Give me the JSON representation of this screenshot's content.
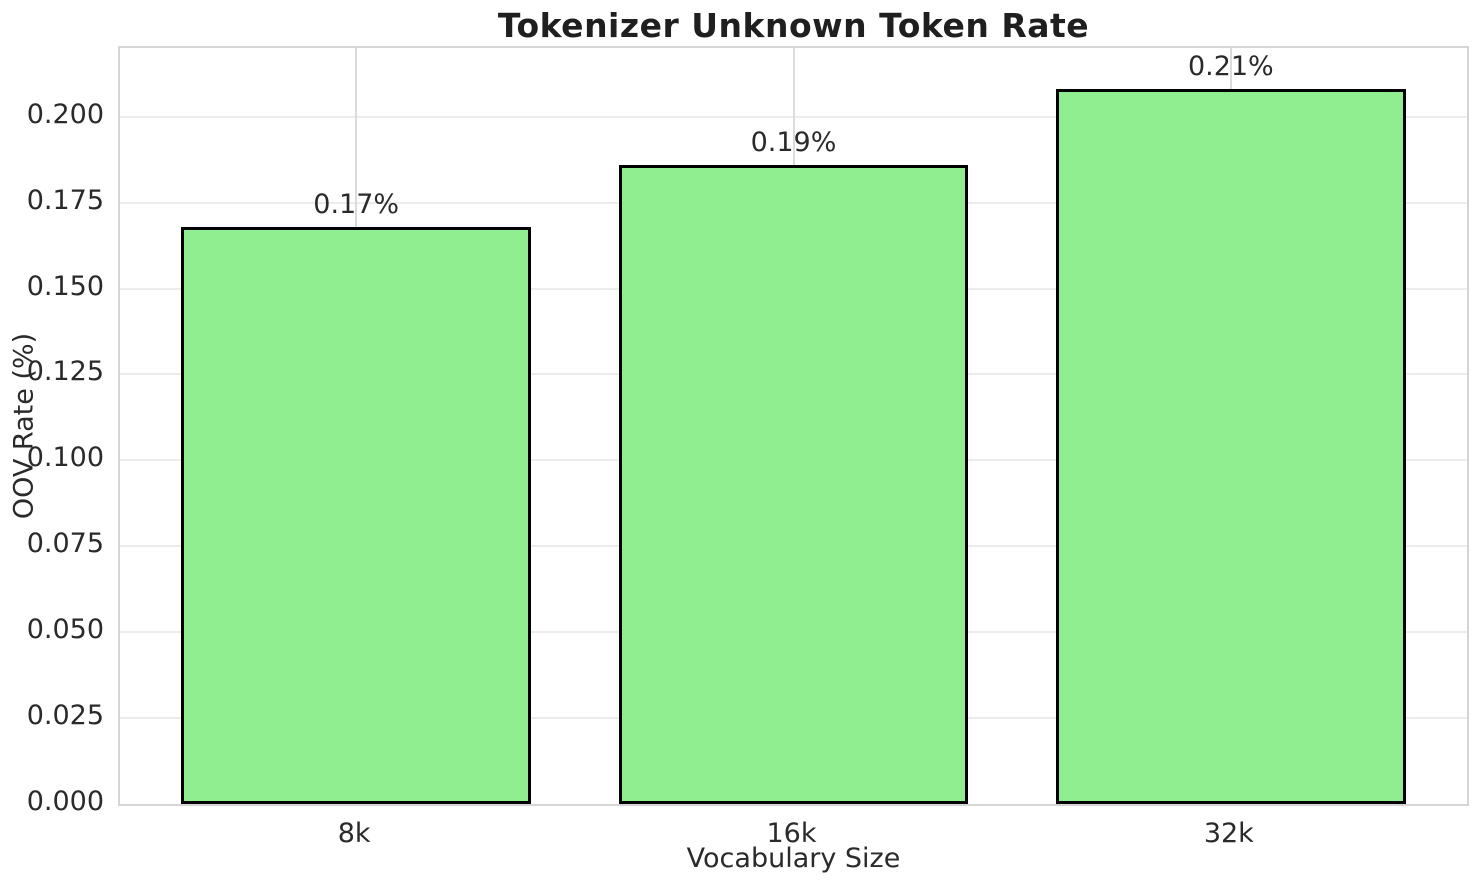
{
  "chart_data": {
    "type": "bar",
    "title": "Tokenizer Unknown Token Rate",
    "xlabel": "Vocabulary Size",
    "ylabel": "OOV Rate (%)",
    "categories": [
      "8k",
      "16k",
      "32k"
    ],
    "values": [
      0.168,
      0.186,
      0.208
    ],
    "bar_labels": [
      "0.17%",
      "0.19%",
      "0.21%"
    ],
    "ylim": [
      0,
      0.22
    ],
    "ytick_labels": [
      "0.000",
      "0.025",
      "0.050",
      "0.075",
      "0.100",
      "0.125",
      "0.150",
      "0.175",
      "0.200"
    ],
    "bar_width_fraction": 0.8,
    "x_margin": 0.05,
    "grid": true,
    "legend": "none",
    "colors": {
      "bar_fill": "#90EE90",
      "bar_edge": "#000000",
      "grid_horizontal": "#ECECEC",
      "grid_vertical": "#DBDBDB",
      "spine": "#D5D5D5",
      "tick_text": "#2A2A2A",
      "title_text": "#1F1F1F",
      "background": "#FFFFFF"
    }
  }
}
